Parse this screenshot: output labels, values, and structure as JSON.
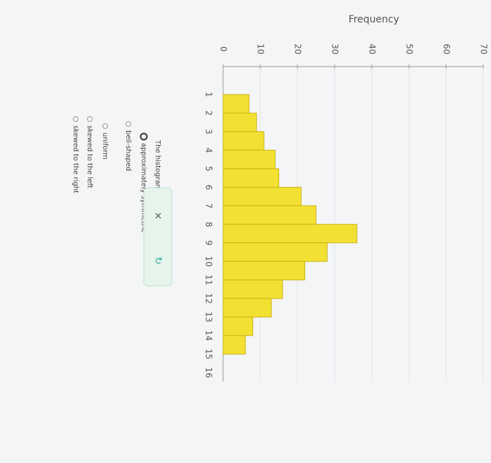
{
  "chart_data": {
    "type": "histogram",
    "y_label": "Frequency",
    "bins": [
      1,
      2,
      3,
      4,
      5,
      6,
      7,
      8,
      9,
      10,
      11,
      12,
      13,
      14,
      15
    ],
    "values": [
      7,
      9,
      11,
      14,
      15,
      21,
      25,
      36,
      28,
      22,
      16,
      13,
      8,
      6
    ],
    "color": "#f2e132",
    "xlim": [
      1,
      16
    ],
    "xticks": [
      1,
      2,
      3,
      4,
      5,
      6,
      7,
      8,
      9,
      10,
      11,
      12,
      13,
      14,
      15,
      16
    ],
    "ylim": [
      0,
      70
    ],
    "yticks": [
      0,
      10,
      20,
      30,
      40,
      50,
      60,
      70
    ],
    "grid": true
  },
  "question": {
    "prompt": "The histogram is",
    "options": [
      "approximately symmetric",
      "bell-shaped",
      "uniform",
      "skewed to the left",
      "skewed to the right"
    ]
  }
}
